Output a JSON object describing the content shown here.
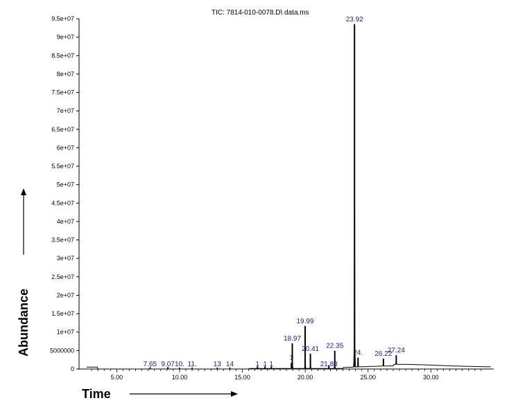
{
  "chart_data": {
    "type": "line",
    "title": "TIC: 7814-010-0078.D\\ data.ms",
    "xlabel": "Time",
    "ylabel": "Abundance",
    "xlim": [
      2.0,
      35.0
    ],
    "ylim": [
      0,
      95000000
    ],
    "x_ticks": [
      "5.00",
      "10.00",
      "15.00",
      "20.00",
      "25.00",
      "30.00"
    ],
    "x_tick_values": [
      5,
      10,
      15,
      20,
      25,
      30
    ],
    "y_ticks": [
      "0",
      "5000000",
      "1e+07",
      "1.5e+07",
      "2e+07",
      "2.5e+07",
      "3e+07",
      "3.5e+07",
      "4e+07",
      "4.5e+07",
      "5e+07",
      "5.5e+07",
      "6e+07",
      "6.5e+07",
      "7e+07",
      "7.5e+07",
      "8e+07",
      "8.5e+07",
      "9e+07",
      "9.5e+07"
    ],
    "y_tick_values": [
      0,
      5000000,
      10000000,
      15000000,
      20000000,
      25000000,
      30000000,
      35000000,
      40000000,
      45000000,
      50000000,
      55000000,
      60000000,
      65000000,
      70000000,
      75000000,
      80000000,
      85000000,
      90000000,
      95000000
    ],
    "peaks": [
      {
        "time": 7.65,
        "label": "7.65",
        "height": 400000
      },
      {
        "time": 9.07,
        "label": "9.07",
        "height": 500000
      },
      {
        "time": 10.0,
        "label": "10.",
        "height": 300000
      },
      {
        "time": 11.0,
        "label": "11.",
        "height": 300000
      },
      {
        "time": 13.0,
        "label": "13",
        "height": 300000
      },
      {
        "time": 14.0,
        "label": "14",
        "height": 300000
      },
      {
        "time": 16.2,
        "label": "1",
        "height": 500000
      },
      {
        "time": 16.8,
        "label": "1",
        "height": 500000
      },
      {
        "time": 17.3,
        "label": "1",
        "height": 500000
      },
      {
        "time": 18.9,
        "label": "1",
        "height": 1500000
      },
      {
        "time": 18.97,
        "label": "18.97",
        "height": 6800000
      },
      {
        "time": 19.99,
        "label": "19.99",
        "height": 11500000
      },
      {
        "time": 20.41,
        "label": "20.41",
        "height": 4000000
      },
      {
        "time": 21.88,
        "label": "21.88",
        "height": 900000
      },
      {
        "time": 22.35,
        "label": "22.35",
        "height": 4800000
      },
      {
        "time": 23.92,
        "label": "23.92",
        "height": 93000000
      },
      {
        "time": 24.2,
        "label": "24.",
        "height": 2500000
      },
      {
        "time": 26.22,
        "label": "26.22",
        "height": 2000000
      },
      {
        "time": 27.24,
        "label": "27.24",
        "height": 2500000
      }
    ]
  }
}
